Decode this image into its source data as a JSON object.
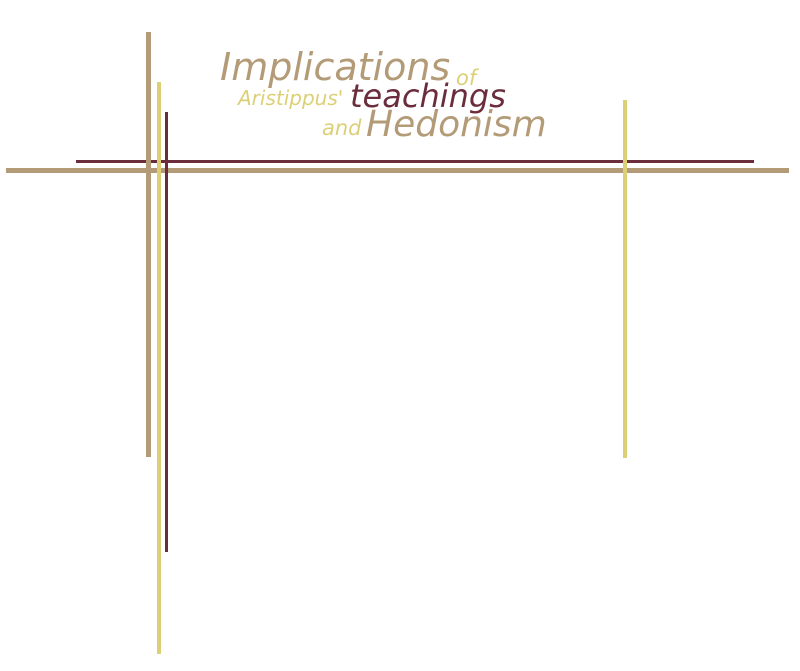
{
  "title": {
    "implications": "Implications",
    "of": "of",
    "aristippus": "Aristippus'",
    "teachings": "teachings",
    "and": "and",
    "hedonism": "Hedonism"
  },
  "colors": {
    "tan": "#b39b78",
    "gold": "#dcd077",
    "maroon": "#6b2d3c"
  }
}
